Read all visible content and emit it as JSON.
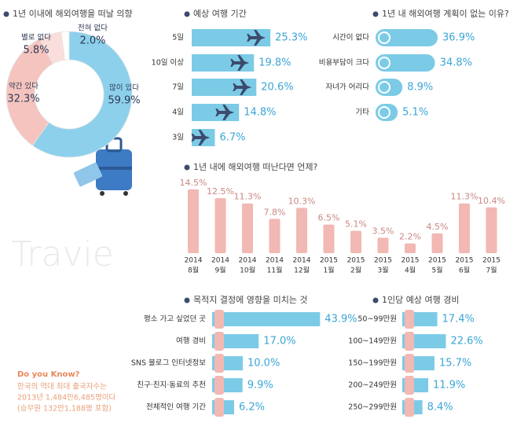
{
  "chart_data": [
    {
      "type": "donut",
      "title": "1년 이내에 해외여행을 떠날 의향",
      "categories": [
        "많이 있다",
        "약간 있다",
        "별로 없다",
        "전혀 없다"
      ],
      "values": [
        59.9,
        32.3,
        5.8,
        2.0
      ],
      "value_labels": [
        "59.9%",
        "32.3%",
        "5.8%",
        "2.0%"
      ],
      "colors": [
        "#8dd0ec",
        "#f5c4bf",
        "#f9dedb",
        "#ffffff"
      ]
    },
    {
      "type": "hbar",
      "title": "예상 여행 기간",
      "categories": [
        "5일",
        "10일 이상",
        "7일",
        "4일",
        "3일"
      ],
      "values": [
        25.3,
        19.8,
        20.6,
        14.8,
        6.7
      ],
      "value_labels": [
        "25.3%",
        "19.8%",
        "20.6%",
        "14.8%",
        "6.7%"
      ],
      "color": "#7ccbe6",
      "label_color": "#3ba5d6"
    },
    {
      "type": "hbar",
      "title": "1년 내 해외여행 계획이 없는 이유?",
      "categories": [
        "시간이 없다",
        "비용부담이 크다",
        "자녀가 어리다",
        "기타"
      ],
      "values": [
        36.9,
        34.8,
        8.9,
        5.1
      ],
      "value_labels": [
        "36.9%",
        "34.8%",
        "8.9%",
        "5.1%"
      ],
      "color": "#7ccbe6",
      "label_color": "#3ba5d6"
    },
    {
      "type": "column",
      "title": "1년 내에 해외여행 떠난다면 언제?",
      "categories": [
        [
          "2014",
          "8월"
        ],
        [
          "2014",
          "9월"
        ],
        [
          "2014",
          "10월"
        ],
        [
          "2014",
          "11월"
        ],
        [
          "2014",
          "12월"
        ],
        [
          "2015",
          "1월"
        ],
        [
          "2015",
          "2월"
        ],
        [
          "2015",
          "3월"
        ],
        [
          "2015",
          "4월"
        ],
        [
          "2015",
          "5월"
        ],
        [
          "2015",
          "6월"
        ],
        [
          "2015",
          "7월"
        ]
      ],
      "values": [
        14.5,
        12.5,
        11.3,
        7.8,
        10.3,
        6.5,
        5.1,
        3.5,
        2.2,
        4.5,
        11.3,
        10.4
      ],
      "value_labels": [
        "14.5%",
        "12.5%",
        "11.3%",
        "7.8%",
        "10.3%",
        "6.5%",
        "5.1%",
        "3.5%",
        "2.2%",
        "4.5%",
        "11.3%",
        "10.4%"
      ],
      "color": "#f2b8b3",
      "label_color": "#c98883"
    },
    {
      "type": "hbar",
      "title": "목적지 결정에 영향을 미치는 것",
      "categories": [
        "평소 가고 싶었던 곳",
        "여행 경비",
        "SNS 블로그 인터넷정보",
        "친구·친지·동료의 추천",
        "전체적인 여행 기간"
      ],
      "values": [
        43.9,
        17.0,
        10.0,
        9.9,
        6.2
      ],
      "value_labels": [
        "43.9%",
        "17.0%",
        "10.0%",
        "9.9%",
        "6.2%"
      ],
      "color": "#7ccbe6",
      "label_color": "#3ba5d6"
    },
    {
      "type": "hbar",
      "title": "1인당 예상 여행 경비",
      "categories": [
        "50~99만원",
        "100~149만원",
        "150~199만원",
        "200~249만원",
        "250~299만원"
      ],
      "values": [
        17.4,
        22.6,
        15.7,
        11.9,
        8.4
      ],
      "value_labels": [
        "17.4%",
        "22.6%",
        "15.7%",
        "11.9%",
        "8.4%"
      ],
      "color": "#7ccbe6",
      "label_color": "#3ba5d6"
    }
  ],
  "watermark": "Travie",
  "note": {
    "title": "Do you Know?",
    "lines": [
      "한국의 역대 최대 출국자수는",
      "2013년 1,484만6,485명이다",
      "(승무원 132만1,188명 포함)"
    ]
  }
}
